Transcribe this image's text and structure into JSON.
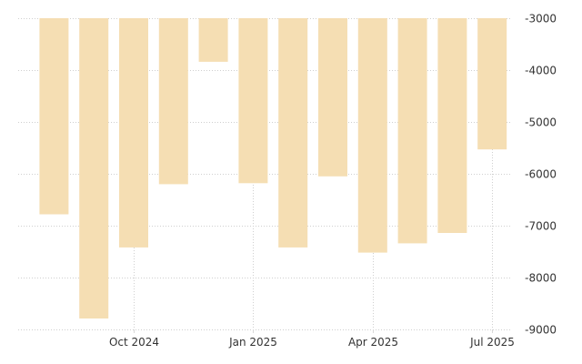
{
  "chart_data": {
    "type": "bar",
    "title": "",
    "xlabel": "",
    "ylabel": "",
    "grid": true,
    "y_axis_position": "right",
    "categories": [
      "2024-08",
      "2024-09",
      "2024-10",
      "2024-11",
      "2024-12",
      "2025-01",
      "2025-02",
      "2025-03",
      "2025-04",
      "2025-05",
      "2025-06",
      "2025-07"
    ],
    "values": [
      -6780,
      -8790,
      -7420,
      -6200,
      -3840,
      -6180,
      -7420,
      -6050,
      -7520,
      -7340,
      -7140,
      -5530
    ],
    "ylim": [
      -9000,
      -3000
    ],
    "y_ticks": [
      -3000,
      -4000,
      -5000,
      -6000,
      -7000,
      -8000,
      -9000
    ],
    "y_tick_labels": [
      "-3000",
      "-4000",
      "-5000",
      "-6000",
      "-7000",
      "-8000",
      "-9000"
    ],
    "x_ticks": [
      {
        "category": "2024-10",
        "label": "Oct 2024"
      },
      {
        "category": "2025-01",
        "label": "Jan 2025"
      },
      {
        "category": "2025-04",
        "label": "Apr 2025"
      },
      {
        "category": "2025-07",
        "label": "Jul 2025"
      }
    ],
    "colors": {
      "bar": "#f5deb3",
      "grid": "#cfcfcf",
      "text": "#333333"
    }
  }
}
